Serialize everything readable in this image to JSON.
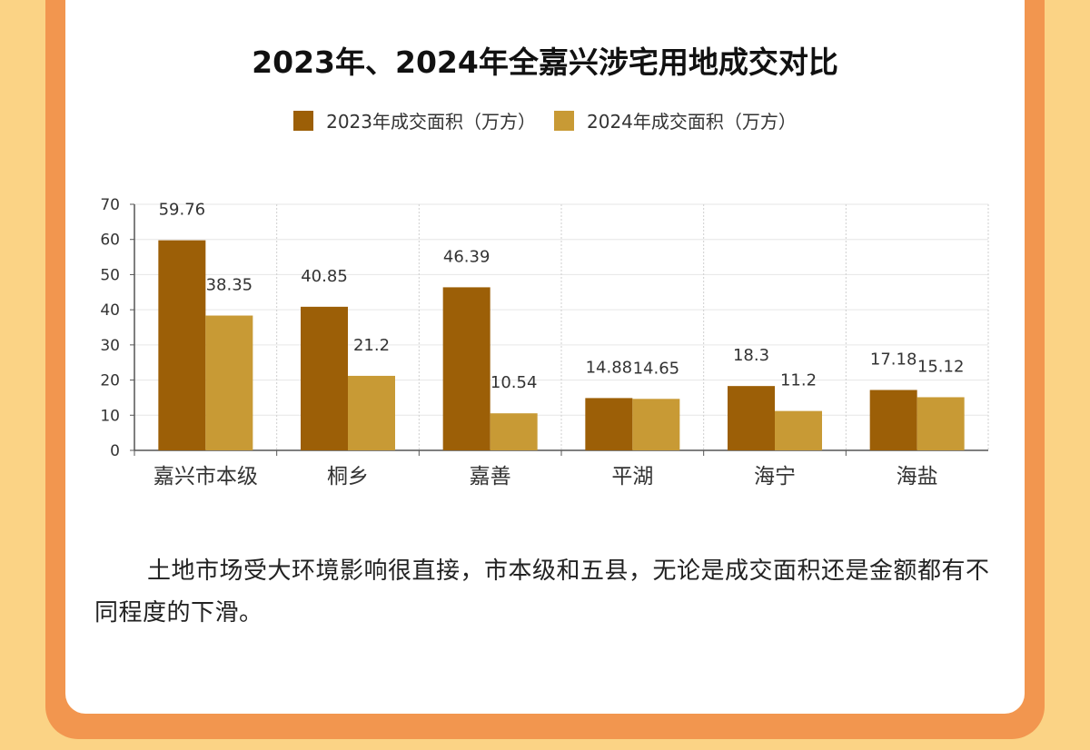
{
  "title": "2023年、2024年全嘉兴涉宅用地成交对比",
  "colors": {
    "series2023": "#9c5f07",
    "series2024": "#c89a35"
  },
  "legend": [
    {
      "label": "2023年成交面积（万方）",
      "color": "#9c5f07"
    },
    {
      "label": "2024年成交面积（万方）",
      "color": "#c89a35"
    }
  ],
  "chart_data": {
    "type": "bar",
    "categories": [
      "嘉兴市本级",
      "桐乡",
      "嘉善",
      "平湖",
      "海宁",
      "海盐"
    ],
    "series": [
      {
        "name": "2023年成交面积（万方）",
        "values": [
          59.76,
          40.85,
          46.39,
          14.88,
          18.3,
          17.18
        ]
      },
      {
        "name": "2024年成交面积（万方）",
        "values": [
          38.35,
          21.2,
          10.54,
          14.65,
          11.2,
          15.12
        ]
      }
    ],
    "data_labels": [
      [
        "59.76",
        "40.85",
        "46.39",
        "14.88",
        "18.3",
        "17.18"
      ],
      [
        "38.35",
        "21.2",
        "10.54",
        "14.65",
        "11.2",
        "15.12"
      ]
    ],
    "y_ticks": [
      "0",
      "10",
      "20",
      "30",
      "40",
      "50",
      "60",
      "70"
    ],
    "ylim": [
      0,
      70
    ],
    "grid": true,
    "legend_position": "top-center"
  },
  "paragraph": "土地市场受大环境影响很直接，市本级和五县，无论是成交面积还是金额都有不同程度的下滑。"
}
